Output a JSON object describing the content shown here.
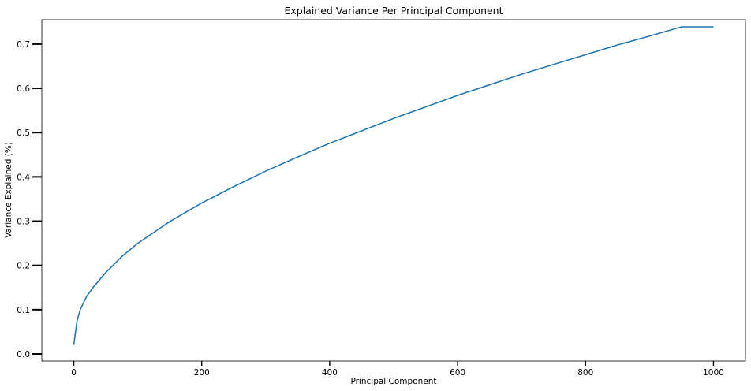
{
  "chart_data": {
    "type": "line",
    "title": "Explained Variance Per Principal Component",
    "xlabel": "Principal Component",
    "ylabel": "Variance Explained (%)",
    "xlim": [
      -50,
      1050
    ],
    "ylim": [
      -0.016,
      0.755
    ],
    "xticks": [
      0,
      200,
      400,
      600,
      800,
      1000
    ],
    "yticks": [
      0.0,
      0.1,
      0.2,
      0.3,
      0.4,
      0.5,
      0.6,
      0.7
    ],
    "xtick_labels": [
      "0",
      "200",
      "400",
      "600",
      "800",
      "1000"
    ],
    "ytick_labels": [
      "0.0",
      "0.1",
      "0.2",
      "0.3",
      "0.4",
      "0.5",
      "0.6",
      "0.7"
    ],
    "grid": false,
    "line_color": "#1f77b4",
    "series": [
      {
        "x": [
          0,
          5,
          10,
          20,
          30,
          50,
          75,
          100,
          150,
          200,
          250,
          300,
          350,
          400,
          450,
          500,
          550,
          600,
          650,
          700,
          750,
          800,
          850,
          900,
          950,
          1000
        ],
        "values": [
          0.021,
          0.074,
          0.1,
          0.13,
          0.15,
          0.184,
          0.22,
          0.25,
          0.299,
          0.341,
          0.378,
          0.413,
          0.445,
          0.476,
          0.504,
          0.532,
          0.558,
          0.584,
          0.608,
          0.632,
          0.654,
          0.676,
          0.698,
          0.718,
          0.739,
          0.739
        ]
      }
    ]
  }
}
